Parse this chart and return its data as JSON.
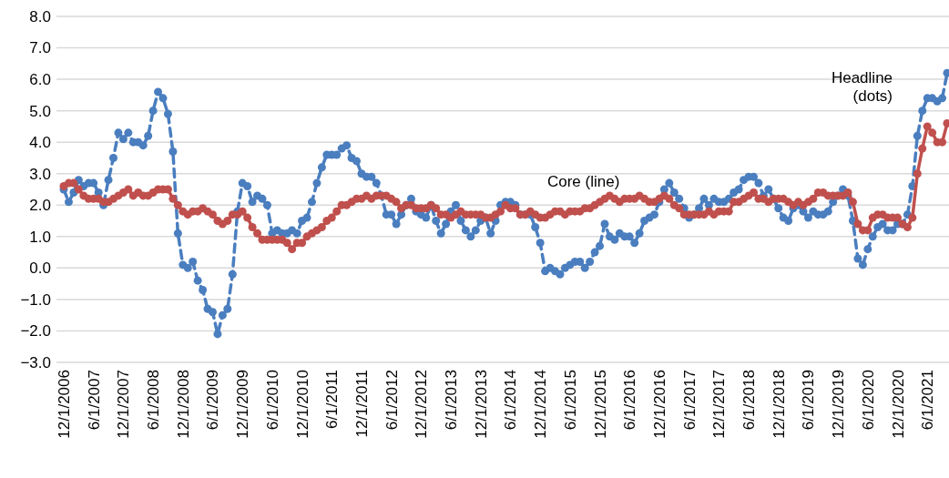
{
  "chart_data": {
    "type": "line",
    "categories": [
      "12/1/2006",
      null,
      null,
      null,
      null,
      null,
      "6/1/2007",
      null,
      null,
      null,
      null,
      null,
      "12/1/2007",
      null,
      null,
      null,
      null,
      null,
      "6/1/2008",
      null,
      null,
      null,
      null,
      null,
      "12/1/2008",
      null,
      null,
      null,
      null,
      null,
      "6/1/2009",
      null,
      null,
      null,
      null,
      null,
      "12/1/2009",
      null,
      null,
      null,
      null,
      null,
      "6/1/2010",
      null,
      null,
      null,
      null,
      null,
      "12/1/2010",
      null,
      null,
      null,
      null,
      null,
      "6/1/2011",
      null,
      null,
      null,
      null,
      null,
      "12/1/2011",
      null,
      null,
      null,
      null,
      null,
      "6/1/2012",
      null,
      null,
      null,
      null,
      null,
      "12/1/2012",
      null,
      null,
      null,
      null,
      null,
      "6/1/2013",
      null,
      null,
      null,
      null,
      null,
      "12/1/2013",
      null,
      null,
      null,
      null,
      null,
      "6/1/2014",
      null,
      null,
      null,
      null,
      null,
      "12/1/2014",
      null,
      null,
      null,
      null,
      null,
      "6/1/2015",
      null,
      null,
      null,
      null,
      null,
      "12/1/2015",
      null,
      null,
      null,
      null,
      null,
      "6/1/2016",
      null,
      null,
      null,
      null,
      null,
      "12/1/2016",
      null,
      null,
      null,
      null,
      null,
      "6/1/2017",
      null,
      null,
      null,
      null,
      null,
      "12/1/2017",
      null,
      null,
      null,
      null,
      null,
      "6/1/2018",
      null,
      null,
      null,
      null,
      null,
      "12/1/2018",
      null,
      null,
      null,
      null,
      null,
      "6/1/2019",
      null,
      null,
      null,
      null,
      null,
      "12/1/2019",
      null,
      null,
      null,
      null,
      null,
      "6/1/2020",
      null,
      null,
      null,
      null,
      null,
      "12/1/2020",
      null,
      null,
      null,
      null,
      null,
      "6/1/2021",
      null,
      null,
      null,
      null
    ],
    "series": [
      {
        "color": "#4a7ebf",
        "line_style": "dashed",
        "values": [
          2.5,
          2.1,
          2.4,
          2.8,
          2.6,
          2.7,
          2.7,
          2.4,
          2.0,
          2.8,
          3.5,
          4.3,
          4.1,
          4.3,
          4.0,
          4.0,
          3.9,
          4.2,
          5.0,
          5.6,
          5.4,
          4.9,
          3.7,
          1.1,
          0.1,
          0.0,
          0.2,
          -0.4,
          -0.7,
          -1.3,
          -1.4,
          -2.1,
          -1.5,
          -1.3,
          -0.2,
          1.8,
          2.7,
          2.6,
          2.1,
          2.3,
          2.2,
          2.0,
          1.1,
          1.2,
          1.1,
          1.1,
          1.2,
          1.1,
          1.5,
          1.6,
          2.1,
          2.7,
          3.2,
          3.6,
          3.6,
          3.6,
          3.8,
          3.9,
          3.5,
          3.4,
          3.0,
          2.9,
          2.9,
          2.7,
          2.3,
          1.7,
          1.7,
          1.4,
          1.7,
          2.0,
          2.2,
          1.8,
          1.7,
          1.6,
          2.0,
          1.5,
          1.1,
          1.4,
          1.8,
          2.0,
          1.5,
          1.2,
          1.0,
          1.2,
          1.5,
          1.6,
          1.1,
          1.5,
          2.0,
          2.1,
          2.1,
          2.0,
          1.7,
          1.7,
          1.7,
          1.3,
          0.8,
          -0.1,
          0.0,
          -0.1,
          -0.2,
          0.0,
          0.1,
          0.2,
          0.2,
          0.0,
          0.2,
          0.5,
          0.7,
          1.4,
          1.0,
          0.9,
          1.1,
          1.0,
          1.0,
          0.8,
          1.1,
          1.5,
          1.6,
          1.7,
          2.1,
          2.5,
          2.7,
          2.4,
          2.2,
          1.9,
          1.6,
          1.7,
          1.9,
          2.2,
          2.0,
          2.2,
          2.1,
          2.1,
          2.2,
          2.4,
          2.5,
          2.8,
          2.9,
          2.9,
          2.7,
          2.3,
          2.5,
          2.2,
          1.9,
          1.6,
          1.5,
          1.9,
          2.0,
          1.8,
          1.6,
          1.8,
          1.7,
          1.7,
          1.8,
          2.1,
          2.3,
          2.5,
          2.3,
          1.5,
          0.3,
          0.1,
          0.6,
          1.0,
          1.3,
          1.4,
          1.2,
          1.2,
          1.4,
          1.4,
          1.7,
          2.6,
          4.2,
          5.0,
          5.4,
          5.4,
          5.3,
          5.4,
          6.2
        ]
      },
      {
        "color": "#c0504d",
        "line_style": "solid",
        "values": [
          2.6,
          2.7,
          2.7,
          2.5,
          2.3,
          2.2,
          2.2,
          2.2,
          2.1,
          2.1,
          2.2,
          2.3,
          2.4,
          2.5,
          2.3,
          2.4,
          2.3,
          2.3,
          2.4,
          2.5,
          2.5,
          2.5,
          2.2,
          2.0,
          1.8,
          1.7,
          1.8,
          1.8,
          1.9,
          1.8,
          1.7,
          1.5,
          1.4,
          1.5,
          1.7,
          1.7,
          1.8,
          1.6,
          1.3,
          1.1,
          0.9,
          0.9,
          0.9,
          0.9,
          0.9,
          0.8,
          0.6,
          0.8,
          0.8,
          1.0,
          1.1,
          1.2,
          1.3,
          1.5,
          1.6,
          1.8,
          2.0,
          2.0,
          2.1,
          2.2,
          2.2,
          2.3,
          2.2,
          2.3,
          2.3,
          2.3,
          2.2,
          2.1,
          1.9,
          2.0,
          2.0,
          1.9,
          1.9,
          1.9,
          2.0,
          1.9,
          1.7,
          1.7,
          1.6,
          1.7,
          1.8,
          1.7,
          1.7,
          1.7,
          1.7,
          1.6,
          1.6,
          1.7,
          1.8,
          2.0,
          1.9,
          1.9,
          1.7,
          1.7,
          1.8,
          1.7,
          1.6,
          1.6,
          1.7,
          1.8,
          1.8,
          1.7,
          1.8,
          1.8,
          1.8,
          1.9,
          1.9,
          2.0,
          2.1,
          2.2,
          2.3,
          2.2,
          2.1,
          2.2,
          2.2,
          2.2,
          2.3,
          2.2,
          2.1,
          2.1,
          2.2,
          2.3,
          2.2,
          2.0,
          1.9,
          1.7,
          1.7,
          1.7,
          1.7,
          1.7,
          1.8,
          1.7,
          1.8,
          1.8,
          1.8,
          2.1,
          2.1,
          2.2,
          2.3,
          2.4,
          2.2,
          2.2,
          2.1,
          2.2,
          2.2,
          2.2,
          2.1,
          2.0,
          2.1,
          2.0,
          2.1,
          2.2,
          2.4,
          2.4,
          2.3,
          2.3,
          2.3,
          2.3,
          2.4,
          2.1,
          1.4,
          1.2,
          1.2,
          1.6,
          1.7,
          1.7,
          1.6,
          1.6,
          1.6,
          1.4,
          1.3,
          1.6,
          3.0,
          3.8,
          4.5,
          4.3,
          4.0,
          4.0,
          4.6
        ]
      }
    ],
    "marker": "circle",
    "ylim": [
      -3,
      8
    ],
    "yticks": [
      {
        "value": -3,
        "label": "−3.0"
      },
      {
        "value": -2,
        "label": "−2.0"
      },
      {
        "value": -1,
        "label": "−1.0"
      },
      {
        "value": 0,
        "label": "0.0"
      },
      {
        "value": 1,
        "label": "1.0"
      },
      {
        "value": 2,
        "label": "2.0"
      },
      {
        "value": 3,
        "label": "3.0"
      },
      {
        "value": 4,
        "label": "4.0"
      },
      {
        "value": 5,
        "label": "5.0"
      },
      {
        "value": 6,
        "label": "6.0"
      },
      {
        "value": 7,
        "label": "7.0"
      },
      {
        "value": 8,
        "label": "8.0"
      }
    ],
    "grid": "y",
    "annotations": [
      "Core (line)",
      "Headline (dots)"
    ]
  }
}
